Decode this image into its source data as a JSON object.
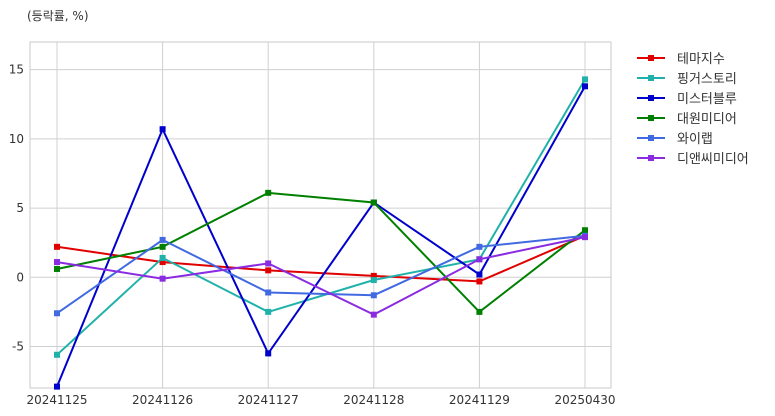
{
  "chart_data": {
    "type": "line",
    "unit_label": "(등락률, %)",
    "categories": [
      "20241125",
      "20241126",
      "20241127",
      "20241128",
      "20241129",
      "20250430"
    ],
    "ylim": [
      -8,
      17
    ],
    "yticks": [
      15,
      10,
      5,
      0,
      -5
    ],
    "ytick_labels": [
      "15",
      "10",
      "5",
      "0",
      "-5"
    ],
    "grid": true,
    "legend_position": "right",
    "series": [
      {
        "name": "테마지수",
        "color": "#e00000",
        "values": [
          2.2,
          1.1,
          0.5,
          0.1,
          -0.3,
          3.0
        ]
      },
      {
        "name": "핑거스토리",
        "color": "#20b2aa",
        "values": [
          -5.6,
          1.4,
          -2.5,
          -0.2,
          1.3,
          14.3
        ]
      },
      {
        "name": "미스터블루",
        "color": "#0000cd",
        "values": [
          -7.9,
          10.7,
          -5.5,
          5.4,
          0.2,
          13.8
        ]
      },
      {
        "name": "대원미디어",
        "color": "#008000",
        "values": [
          0.6,
          2.2,
          6.1,
          5.4,
          -2.5,
          3.4
        ]
      },
      {
        "name": "와이랩",
        "color": "#4169e1",
        "values": [
          -2.6,
          2.7,
          -1.1,
          -1.3,
          2.2,
          3.0
        ]
      },
      {
        "name": "디앤씨미디어",
        "color": "#8a2be2",
        "values": [
          1.1,
          -0.1,
          1.0,
          -2.7,
          1.3,
          2.9
        ]
      }
    ]
  }
}
